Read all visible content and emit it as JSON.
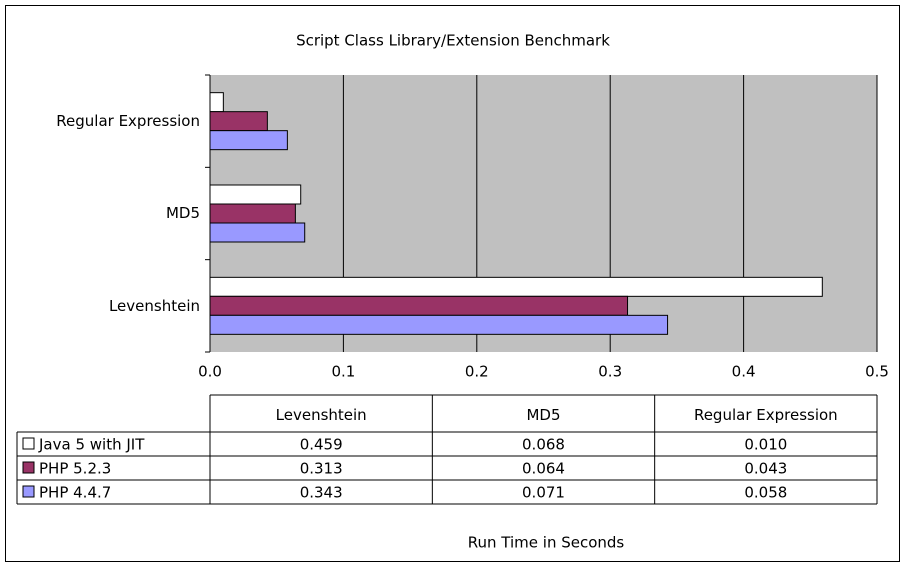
{
  "chart_data": {
    "type": "bar",
    "orientation": "horizontal",
    "title": "Script Class Library/Extension Benchmark",
    "x_label": "Run Time in Seconds",
    "categories": [
      "Levenshtein",
      "MD5",
      "Regular Expression"
    ],
    "series": [
      {
        "name": "Java 5 with JIT",
        "color": "#ffffff",
        "values": [
          0.459,
          0.068,
          0.01
        ],
        "value_labels": [
          "0.459",
          "0.068",
          "0.010"
        ]
      },
      {
        "name": "PHP 5.2.3",
        "color": "#993366",
        "values": [
          0.313,
          0.064,
          0.043
        ],
        "value_labels": [
          "0.313",
          "0.064",
          "0.043"
        ]
      },
      {
        "name": "PHP 4.4.7",
        "color": "#9999ff",
        "values": [
          0.343,
          0.071,
          0.058
        ],
        "value_labels": [
          "0.343",
          "0.071",
          "0.058"
        ]
      }
    ],
    "xlim": [
      0,
      0.5
    ],
    "xticks": [
      {
        "value": 0,
        "label": "0.0"
      },
      0.1,
      0.2,
      0.3,
      0.4,
      0.5
    ],
    "grid": true,
    "plot_background": "#c0c0c0"
  }
}
